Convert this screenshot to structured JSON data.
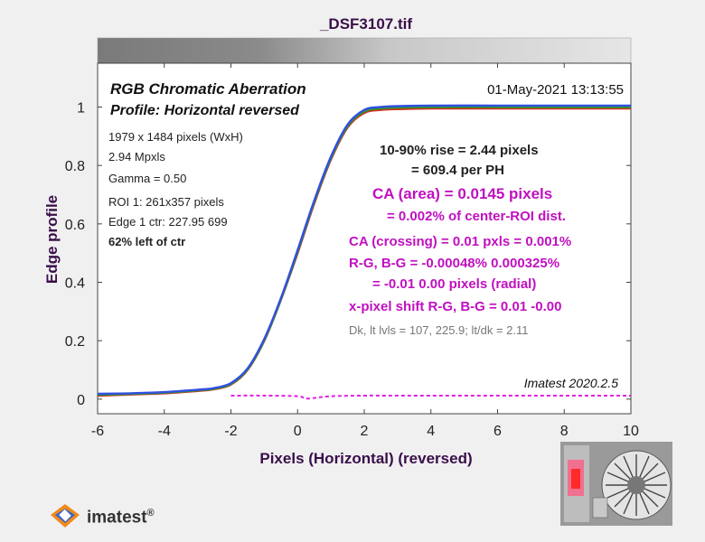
{
  "window_title": "_DSF3107.tif",
  "chart_data": {
    "type": "line",
    "xlabel": "Pixels (Horizontal)   (reversed)",
    "ylabel": "Edge profile",
    "xlim": [
      -6,
      10
    ],
    "ylim": [
      -0.05,
      1.15
    ],
    "xticks": [
      -6,
      -4,
      -2,
      0,
      2,
      4,
      6,
      8,
      10
    ],
    "yticks": [
      0,
      0.2,
      0.4,
      0.6,
      0.8,
      1
    ],
    "grid": false,
    "series": [
      {
        "color": "#d03020",
        "x": [
          -6,
          -5,
          -4,
          -3,
          -2.5,
          -2,
          -1.5,
          -1,
          -0.5,
          0,
          0.5,
          1,
          1.5,
          2,
          2.5,
          3,
          4,
          6,
          8,
          10
        ],
        "y": [
          0.012,
          0.016,
          0.02,
          0.028,
          0.034,
          0.05,
          0.1,
          0.2,
          0.34,
          0.5,
          0.67,
          0.82,
          0.93,
          0.98,
          0.99,
          0.993,
          0.995,
          0.995,
          0.995,
          0.995
        ]
      },
      {
        "color": "#2a9a2a",
        "x": [
          -6,
          -5,
          -4,
          -3,
          -2.5,
          -2,
          -1.5,
          -1,
          -0.5,
          0,
          0.5,
          1,
          1.5,
          2,
          2.5,
          3,
          4,
          6,
          8,
          10
        ],
        "y": [
          0.015,
          0.018,
          0.022,
          0.03,
          0.036,
          0.052,
          0.102,
          0.202,
          0.342,
          0.505,
          0.675,
          0.825,
          0.935,
          0.985,
          0.995,
          0.998,
          1.0,
          1.0,
          1.0,
          1.0
        ]
      },
      {
        "color": "#3050e0",
        "x": [
          -6,
          -5,
          -4,
          -3,
          -2.5,
          -2,
          -1.5,
          -1,
          -0.5,
          0,
          0.5,
          1,
          1.5,
          2,
          2.5,
          3,
          4,
          6,
          8,
          10
        ],
        "y": [
          0.018,
          0.02,
          0.024,
          0.032,
          0.038,
          0.055,
          0.105,
          0.206,
          0.346,
          0.51,
          0.68,
          0.83,
          0.94,
          0.99,
          1.0,
          1.003,
          1.005,
          1.005,
          1.005,
          1.005
        ]
      },
      {
        "color": "#e020e0",
        "dashed": true,
        "x": [
          -2,
          -1,
          0,
          0.3,
          1,
          2,
          3,
          6,
          10
        ],
        "y": [
          0.012,
          0.012,
          0.01,
          0.002,
          0.01,
          0.012,
          0.012,
          0.012,
          0.012
        ]
      }
    ]
  },
  "annotations": {
    "title": "RGB Chromatic Aberration",
    "subtitle": "Profile: Horizontal reversed",
    "date": "01-May-2021 13:13:55",
    "info": [
      "1979 x 1484 pixels (WxH)",
      "2.94 Mpxls",
      "Gamma = 0.50",
      "ROI 1: 261x357 pixels",
      "Edge 1 ctr: 227.95  699"
    ],
    "left_of_ctr": "62% left of ctr",
    "rise1": "10-90% rise = 2.44 pixels",
    "rise2": "= 609.4 per PH",
    "ca_area": "CA (area) = 0.0145 pixels",
    "ca_area_pct": "= 0.002% of center-ROI dist.",
    "ca_crossing": "CA (crossing) = 0.01 pxls = 0.001%",
    "rg_bg": "R-G, B-G = -0.00048%  0.000325%",
    "radial": "= -0.01  0.00 pixels (radial)",
    "shift": "x-pixel shift R-G, B-G = 0.01  -0.00",
    "levels": "Dk, lt lvls = 107, 225.9;  lt/dk = 2.11",
    "version": "Imatest 2020.2.5"
  },
  "logo": {
    "text": "imatest",
    "mark": "®"
  }
}
